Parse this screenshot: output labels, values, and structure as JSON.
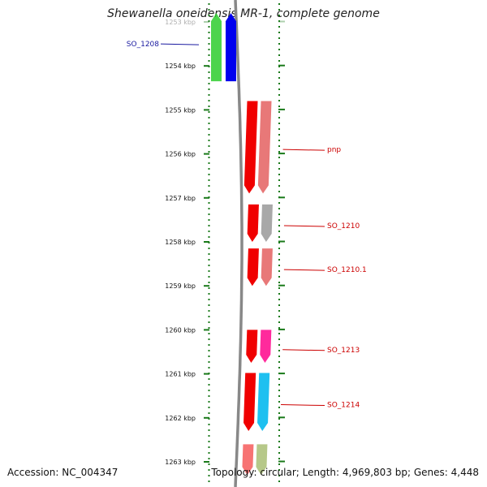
{
  "title": "Shewanella oneidensis MR-1, complete genome",
  "accession": "Accession: NC_004347",
  "summary": "Topology: circular; Length: 4,969,803 bp; Genes: 4,448",
  "colors": {
    "backbone": "#888888",
    "tick": "#1a7a1a",
    "dot": "#1a7a1a",
    "label_blue": "#1a1aa0",
    "label_red": "#cc0000"
  },
  "ruler": {
    "first_kbp": 1253,
    "last_kbp": 1263,
    "visible_range_kbp": [
      1252.8,
      1263.3
    ],
    "ticks": [
      {
        "kbp": 1253,
        "label": "1253 kbp",
        "faded": true
      },
      {
        "kbp": 1254,
        "label": "1254 kbp"
      },
      {
        "kbp": 1255,
        "label": "1255 kbp"
      },
      {
        "kbp": 1256,
        "label": "1256 kbp"
      },
      {
        "kbp": 1257,
        "label": "1257 kbp"
      },
      {
        "kbp": 1258,
        "label": "1258 kbp"
      },
      {
        "kbp": 1259,
        "label": "1259 kbp"
      },
      {
        "kbp": 1260,
        "label": "1260 kbp"
      },
      {
        "kbp": 1261,
        "label": "1261 kbp"
      },
      {
        "kbp": 1262,
        "label": "1262 kbp"
      },
      {
        "kbp": 1263,
        "label": "1263 kbp"
      }
    ]
  },
  "genes": [
    {
      "label": "SO_1208",
      "side": "left",
      "label_kbp": 1253.5,
      "label_color": "#1a1aa0",
      "start_kbp": 1252.8,
      "end_kbp": 1254.35,
      "strand": "reverse",
      "feature_color": "#2ecc2e",
      "cds_color": "#0000ee"
    },
    {
      "label": "pnp",
      "side": "right",
      "label_kbp": 1255.9,
      "label_color": "#cc0000",
      "start_kbp": 1254.8,
      "end_kbp": 1256.9,
      "strand": "forward",
      "feature_color": "#f00000",
      "cds_color": "#e87878"
    },
    {
      "label": "SO_1210",
      "side": "right",
      "label_kbp": 1257.63,
      "label_color": "#cc0000",
      "start_kbp": 1257.15,
      "end_kbp": 1258.0,
      "strand": "forward",
      "feature_color": "#f00000",
      "cds_color": "#a8a8a8"
    },
    {
      "label": "SO_1210.1",
      "side": "right",
      "label_kbp": 1258.63,
      "label_color": "#cc0000",
      "start_kbp": 1258.15,
      "end_kbp": 1259.0,
      "strand": "forward",
      "feature_color": "#f00000",
      "cds_color": "#e87878"
    },
    {
      "label": "SO_1213",
      "side": "right",
      "label_kbp": 1260.45,
      "label_color": "#cc0000",
      "start_kbp": 1260.0,
      "end_kbp": 1260.75,
      "strand": "forward",
      "feature_color": "#f00000",
      "cds_color": "#ff2a9c"
    },
    {
      "label": "SO_1214",
      "side": "right",
      "label_kbp": 1261.7,
      "label_color": "#cc0000",
      "start_kbp": 1260.98,
      "end_kbp": 1262.3,
      "strand": "forward",
      "feature_color": "#f00000",
      "cds_color": "#1ec0f0"
    },
    {
      "label": "",
      "side": "right",
      "label_kbp": 1263.0,
      "label_color": "#cc0000",
      "start_kbp": 1262.6,
      "end_kbp": 1263.3,
      "strand": "forward",
      "feature_color": "#f00000",
      "cds_color": "#7a9a28",
      "faded": true
    }
  ]
}
